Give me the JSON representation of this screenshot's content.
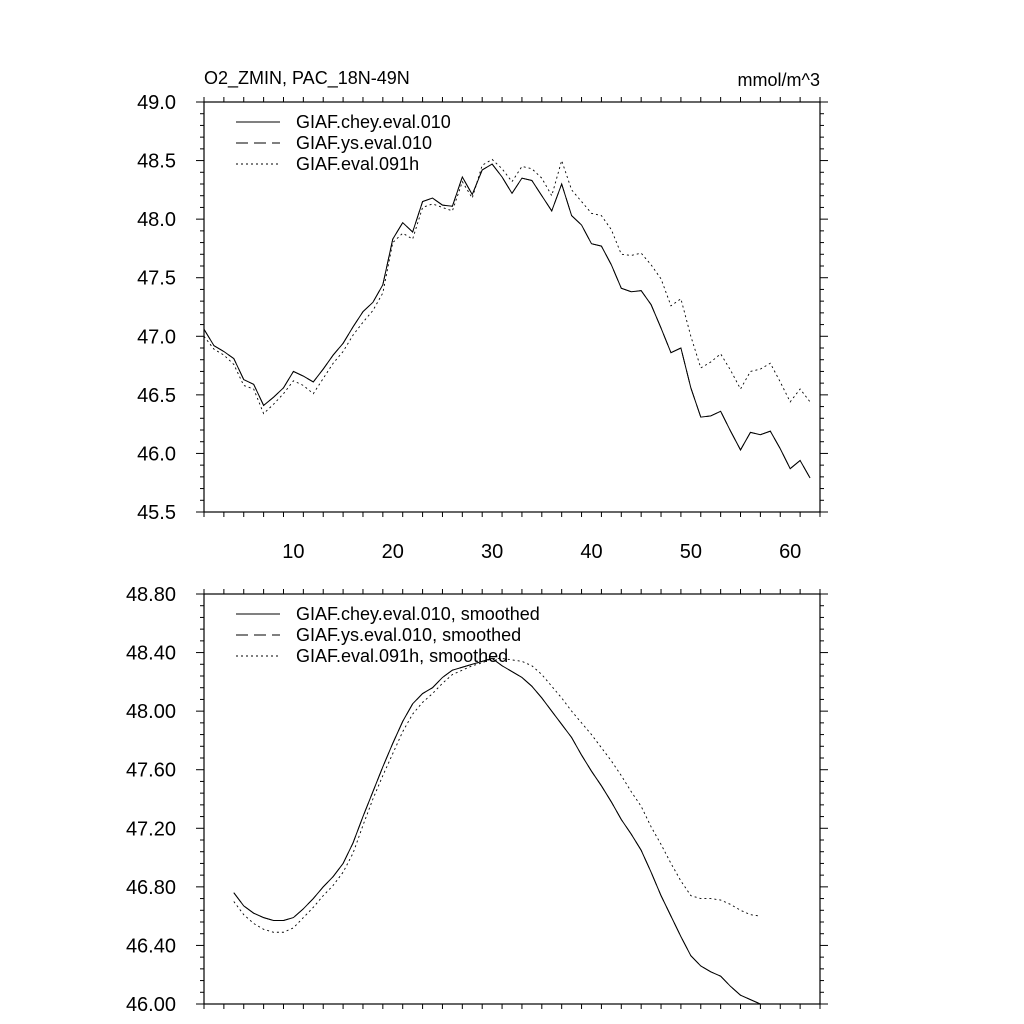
{
  "figure": {
    "title_left": "O2_ZMIN, PAC_18N-49N",
    "title_right": "mmol/m^3"
  },
  "chart_data": [
    {
      "type": "line",
      "title": "O2_ZMIN, PAC_18N-49N",
      "units": "mmol/m^3",
      "xlabel": "",
      "ylabel": "",
      "xlim": [
        1,
        63
      ],
      "ylim": [
        45.5,
        49.0
      ],
      "x_ticks": [
        10,
        20,
        30,
        40,
        50,
        60
      ],
      "y_ticks": [
        45.5,
        46.0,
        46.5,
        47.0,
        47.5,
        48.0,
        48.5,
        49.0
      ],
      "y_tick_labels": [
        "45.5",
        "46.0",
        "46.5",
        "47.0",
        "47.5",
        "48.0",
        "48.5",
        "49.0"
      ],
      "legend_position": "top-left",
      "x_start": 1,
      "series": [
        {
          "name": "GIAF.chey.eval.010",
          "style": "solid",
          "values": [
            47.06,
            46.92,
            46.87,
            46.81,
            46.63,
            46.59,
            46.41,
            46.48,
            46.56,
            46.7,
            46.66,
            46.61,
            46.72,
            46.84,
            46.94,
            47.08,
            47.21,
            47.29,
            47.44,
            47.83,
            47.97,
            47.89,
            48.15,
            48.18,
            48.12,
            48.11,
            48.36,
            48.21,
            48.42,
            48.47,
            48.36,
            48.22,
            48.35,
            48.33,
            48.2,
            48.07,
            48.3,
            48.03,
            47.95,
            47.79,
            47.77,
            47.61,
            47.41,
            47.38,
            47.39,
            47.27,
            47.07,
            46.86,
            46.9,
            46.56,
            46.31,
            46.32,
            46.36,
            46.19,
            46.03,
            46.18,
            46.16,
            46.19,
            46.04,
            45.87,
            45.94,
            45.79
          ]
        },
        {
          "name": "GIAF.ys.eval.010",
          "style": "dashed",
          "values": [
            47.06,
            46.92,
            46.87,
            46.81,
            46.63,
            46.59,
            46.41,
            46.48,
            46.56,
            46.7,
            46.66,
            46.61,
            46.72,
            46.84,
            46.94,
            47.08,
            47.21,
            47.29,
            47.44,
            47.83,
            47.97,
            47.89,
            48.15,
            48.18,
            48.12,
            48.11,
            48.36,
            48.21,
            48.42,
            48.47,
            48.36,
            48.22,
            48.35,
            48.33,
            48.2,
            48.07,
            48.3,
            48.03,
            47.95,
            47.79,
            47.77,
            47.61,
            47.41,
            47.38,
            47.39,
            47.27,
            47.07,
            46.86,
            46.9,
            46.56,
            46.31,
            46.32,
            46.36,
            46.19,
            46.03,
            46.18,
            46.16,
            46.19,
            46.04,
            45.87,
            45.94,
            45.79
          ]
        },
        {
          "name": "GIAF.eval.091h",
          "style": "dotted",
          "values": [
            47.0,
            46.89,
            46.84,
            46.76,
            46.58,
            46.55,
            46.34,
            46.42,
            46.51,
            46.62,
            46.58,
            46.51,
            46.64,
            46.77,
            46.87,
            47.01,
            47.12,
            47.22,
            47.37,
            47.8,
            47.88,
            47.83,
            48.1,
            48.13,
            48.1,
            48.07,
            48.32,
            48.18,
            48.46,
            48.51,
            48.43,
            48.32,
            48.45,
            48.43,
            48.35,
            48.2,
            48.5,
            48.25,
            48.15,
            48.05,
            48.03,
            47.91,
            47.7,
            47.69,
            47.71,
            47.61,
            47.49,
            47.26,
            47.32,
            47.0,
            46.73,
            46.78,
            46.85,
            46.71,
            46.55,
            46.7,
            46.72,
            46.77,
            46.61,
            46.44,
            46.55,
            46.44
          ]
        }
      ]
    },
    {
      "type": "line",
      "title": "",
      "xlabel": "",
      "ylabel": "",
      "xlim": [
        1,
        63
      ],
      "ylim": [
        46.0,
        48.8
      ],
      "x_ticks": [
        10,
        20,
        30,
        40,
        50,
        60
      ],
      "y_ticks": [
        46.0,
        46.4,
        46.8,
        47.2,
        47.6,
        48.0,
        48.4,
        48.8
      ],
      "y_tick_labels": [
        "46.00",
        "46.40",
        "46.80",
        "47.20",
        "47.60",
        "48.00",
        "48.40",
        "48.80"
      ],
      "legend_position": "top-left",
      "x_start": 4,
      "series": [
        {
          "name": "GIAF.chey.eval.010, smoothed",
          "style": "solid",
          "values": [
            46.76,
            46.67,
            46.62,
            46.59,
            46.57,
            46.57,
            46.59,
            46.65,
            46.72,
            46.8,
            46.87,
            46.96,
            47.1,
            47.28,
            47.45,
            47.62,
            47.78,
            47.93,
            48.05,
            48.12,
            48.16,
            48.23,
            48.28,
            48.3,
            48.32,
            48.34,
            48.36,
            48.31,
            48.27,
            48.23,
            48.17,
            48.09,
            48.0,
            47.91,
            47.82,
            47.7,
            47.59,
            47.49,
            47.38,
            47.26,
            47.16,
            47.05,
            46.9,
            46.74,
            46.6,
            46.46,
            46.33,
            46.26,
            46.22,
            46.19,
            46.12,
            46.06,
            46.03,
            46.0
          ]
        },
        {
          "name": "GIAF.ys.eval.010, smoothed",
          "style": "dashed",
          "values": [
            46.76,
            46.67,
            46.62,
            46.59,
            46.57,
            46.57,
            46.59,
            46.65,
            46.72,
            46.8,
            46.87,
            46.96,
            47.1,
            47.28,
            47.45,
            47.62,
            47.78,
            47.93,
            48.05,
            48.12,
            48.16,
            48.23,
            48.28,
            48.3,
            48.32,
            48.34,
            48.36,
            48.31,
            48.27,
            48.23,
            48.17,
            48.09,
            48.0,
            47.91,
            47.82,
            47.7,
            47.59,
            47.49,
            47.38,
            47.26,
            47.16,
            47.05,
            46.9,
            46.74,
            46.6,
            46.46,
            46.33,
            46.26,
            46.22,
            46.19,
            46.12,
            46.06,
            46.03,
            46.0
          ]
        },
        {
          "name": "GIAF.eval.091h, smoothed",
          "style": "dotted",
          "values": [
            46.7,
            46.61,
            46.55,
            46.51,
            46.49,
            46.49,
            46.52,
            46.59,
            46.66,
            46.74,
            46.81,
            46.9,
            47.03,
            47.22,
            47.4,
            47.56,
            47.71,
            47.86,
            47.98,
            48.06,
            48.12,
            48.19,
            48.25,
            48.28,
            48.31,
            48.33,
            48.36,
            48.36,
            48.35,
            48.34,
            48.31,
            48.25,
            48.17,
            48.09,
            48.0,
            47.92,
            47.84,
            47.75,
            47.66,
            47.56,
            47.45,
            47.35,
            47.21,
            47.09,
            46.96,
            46.84,
            46.74,
            46.72,
            46.72,
            46.71,
            46.68,
            46.64,
            46.61,
            46.6
          ]
        }
      ]
    }
  ]
}
